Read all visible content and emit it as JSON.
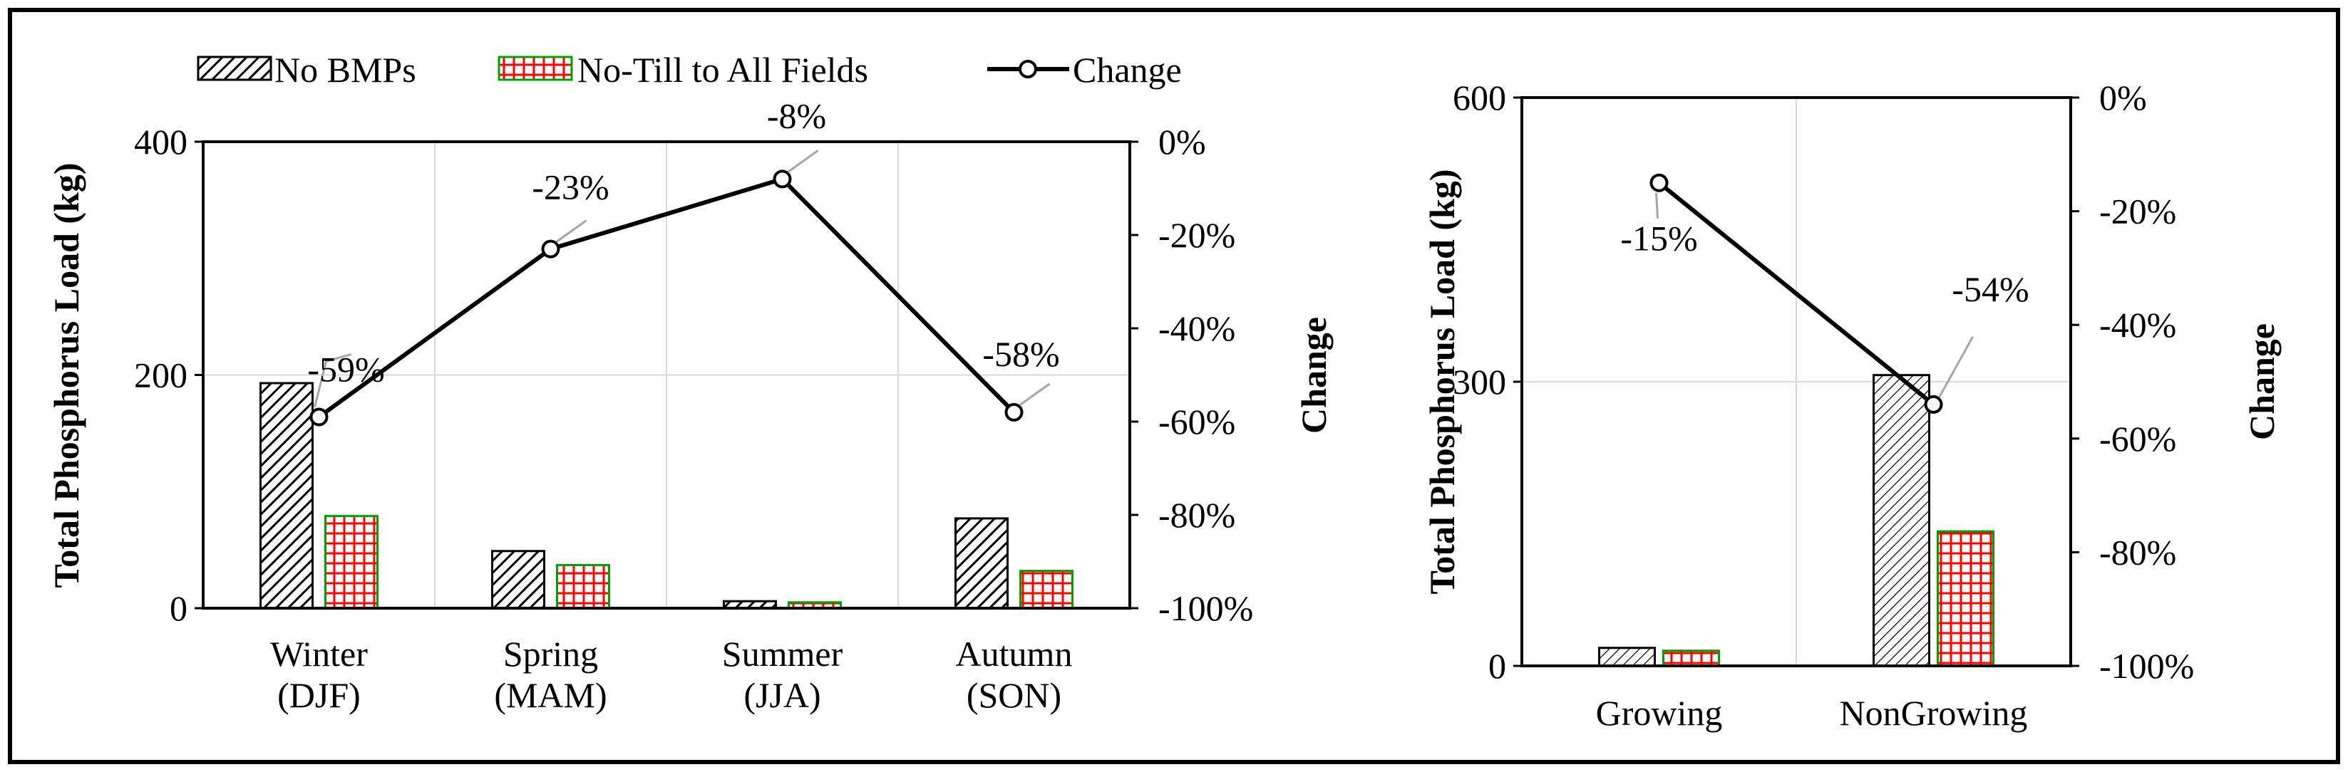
{
  "colors": {
    "frame": "#000000",
    "grid": "#d9d9d9",
    "bar_nobmp_fill": "#ffffff",
    "bar_nobmp_stroke": "#000000",
    "bar_notill_fill": "#ffffff",
    "bar_notill_line": "#ff0000",
    "bar_notill_stroke": "#00a000",
    "line": "#000000",
    "leader": "#a6a6a6"
  },
  "legend": {
    "no_bmps": "No BMPs",
    "no_till": "No-Till to All Fields",
    "change": "Change"
  },
  "chart_data": [
    {
      "id": "seasonal",
      "type": "bar+line",
      "categories": [
        [
          "Winter",
          "(DJF)"
        ],
        [
          "Spring",
          "(MAM)"
        ],
        [
          "Summer",
          "(JJA)"
        ],
        [
          "Autumn",
          "(SON)"
        ]
      ],
      "series": [
        {
          "name": "No BMPs",
          "type": "bar",
          "axis": "left",
          "values": [
            193,
            49,
            6,
            77
          ]
        },
        {
          "name": "No-Till to All Fields",
          "type": "bar",
          "axis": "left",
          "values": [
            79,
            37,
            5,
            32
          ]
        },
        {
          "name": "Change",
          "type": "line",
          "axis": "right",
          "values": [
            -59,
            -23,
            -8,
            -58
          ]
        }
      ],
      "change_labels": [
        "-59%",
        "-23%",
        "-8%",
        "-58%"
      ],
      "ylabel": "Total Phosphorus Load (kg)",
      "ylabel_right": "Change",
      "ylim": [
        0,
        400
      ],
      "y_ticks": [
        "0",
        "200",
        "400"
      ],
      "y2lim": [
        -100,
        0
      ],
      "y2_ticks": [
        "0%",
        "-20%",
        "-40%",
        "-60%",
        "-80%",
        "-100%"
      ]
    },
    {
      "id": "growing",
      "type": "bar+line",
      "categories": [
        [
          "Growing"
        ],
        [
          "NonGrowing"
        ]
      ],
      "series": [
        {
          "name": "No BMPs",
          "type": "bar",
          "axis": "left",
          "values": [
            19,
            307
          ]
        },
        {
          "name": "No-Till to All Fields",
          "type": "bar",
          "axis": "left",
          "values": [
            16,
            142
          ]
        },
        {
          "name": "Change",
          "type": "line",
          "axis": "right",
          "values": [
            -15,
            -54
          ]
        }
      ],
      "change_labels": [
        "-15%",
        "-54%"
      ],
      "ylabel": "Total Phosphorus Load (kg)",
      "ylabel_right": "Change",
      "ylim": [
        0,
        600
      ],
      "y_ticks": [
        "0",
        "300",
        "600"
      ],
      "y2lim": [
        -100,
        0
      ],
      "y2_ticks": [
        "0%",
        "-20%",
        "-40%",
        "-60%",
        "-80%",
        "-100%"
      ]
    }
  ]
}
